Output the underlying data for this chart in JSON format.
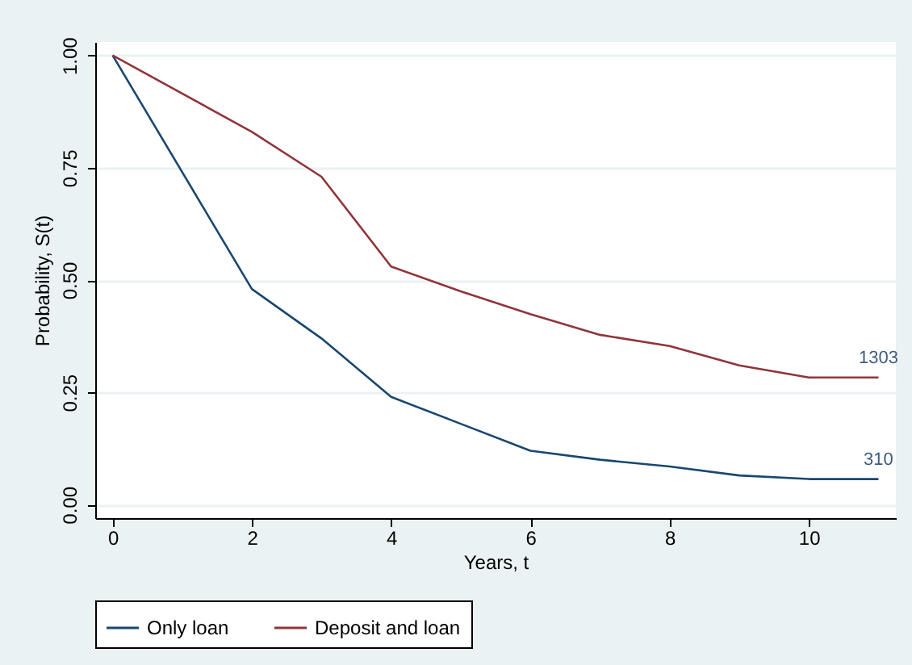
{
  "chart_data": {
    "type": "line",
    "xlabel": "Years, t",
    "ylabel": "Probability, S(t)",
    "x": [
      0,
      2,
      3,
      4,
      5,
      6,
      7,
      8,
      9,
      10,
      11
    ],
    "series": [
      {
        "name": "Only loan",
        "color": "#1a476f",
        "values": [
          1.0,
          0.48,
          0.37,
          0.24,
          0.18,
          0.12,
          0.1,
          0.085,
          0.065,
          0.057,
          0.057
        ]
      },
      {
        "name": "Deposit and loan",
        "color": "#90353b",
        "values": [
          1.0,
          0.83,
          0.73,
          0.53,
          0.475,
          0.424,
          0.378,
          0.353,
          0.31,
          0.283,
          0.283
        ]
      }
    ],
    "xlim": [
      -0.25,
      11.25
    ],
    "xticks": [
      0,
      2,
      4,
      6,
      8,
      10
    ],
    "ylim": [
      -0.03,
      1.03
    ],
    "yticks": [
      {
        "value": 0,
        "label": "0.00"
      },
      {
        "value": 0.25,
        "label": "0.25"
      },
      {
        "value": 0.5,
        "label": "0.50"
      },
      {
        "value": 0.75,
        "label": "0.75"
      },
      {
        "value": 1,
        "label": "1.00"
      }
    ],
    "annotations": [
      {
        "text": "1303",
        "x": 11,
        "y": 0.283
      },
      {
        "text": "310",
        "x": 11,
        "y": 0.057
      }
    ],
    "grid": "y",
    "legend": "bottom",
    "marker": "none",
    "line_style": "solid"
  }
}
